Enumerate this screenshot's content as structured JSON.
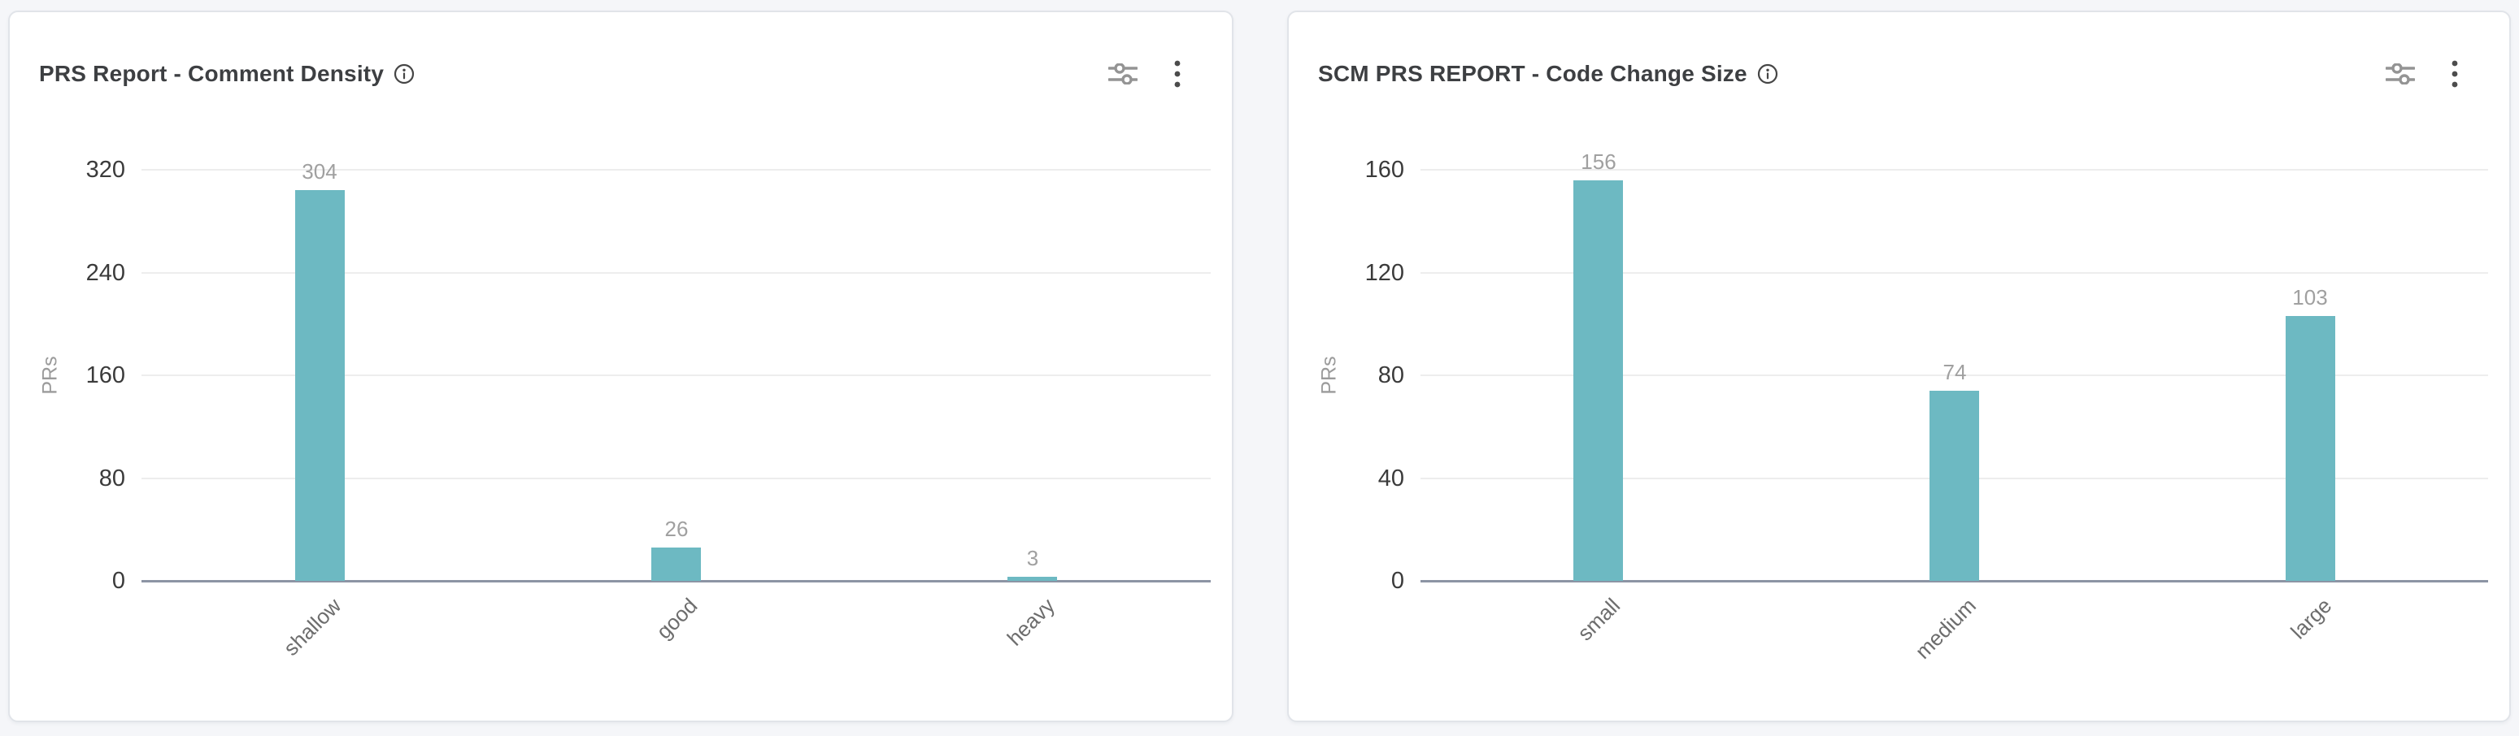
{
  "theme": {
    "page_bg": "#f5f6f9",
    "card_bg": "#ffffff",
    "card_border": "#e1e4e9",
    "title_color": "#3d3f42",
    "grid_color": "#ededed",
    "axis_color": "#8c94a4",
    "tick_color": "#3b3b3b",
    "value_label_color": "#a0a0a0",
    "category_label_color": "#6d6d6d",
    "axis_title_color": "#9b9b9b",
    "bar_color": "#6db9c2"
  },
  "cards": [
    {
      "title": "PRS Report - Comment Density",
      "icons": {
        "info": "info-icon",
        "filter": "sliders-icon",
        "menu": "kebab-menu-icon"
      },
      "chart_data": {
        "type": "bar",
        "title": "PRS Report - Comment Density",
        "categories": [
          "shallow",
          "good",
          "heavy"
        ],
        "values": [
          304,
          26,
          3
        ],
        "value_labels": [
          "304",
          "26",
          "3"
        ],
        "xlabel": "",
        "ylabel": "PRs",
        "yticks": [
          0,
          80,
          160,
          240,
          320
        ],
        "ylim": [
          0,
          320
        ],
        "grid": true,
        "legend": false,
        "bar_color": "#6db9c2"
      }
    },
    {
      "title": "SCM PRS REPORT - Code Change Size",
      "icons": {
        "info": "info-icon",
        "filter": "sliders-icon",
        "menu": "kebab-menu-icon"
      },
      "chart_data": {
        "type": "bar",
        "title": "SCM PRS REPORT - Code Change Size",
        "categories": [
          "small",
          "medium",
          "large"
        ],
        "values": [
          156,
          74,
          103
        ],
        "value_labels": [
          "156",
          "74",
          "103"
        ],
        "xlabel": "",
        "ylabel": "PRs",
        "yticks": [
          0,
          40,
          80,
          120,
          160
        ],
        "ylim": [
          0,
          160
        ],
        "grid": true,
        "legend": false,
        "bar_color": "#6db9c2"
      }
    }
  ]
}
